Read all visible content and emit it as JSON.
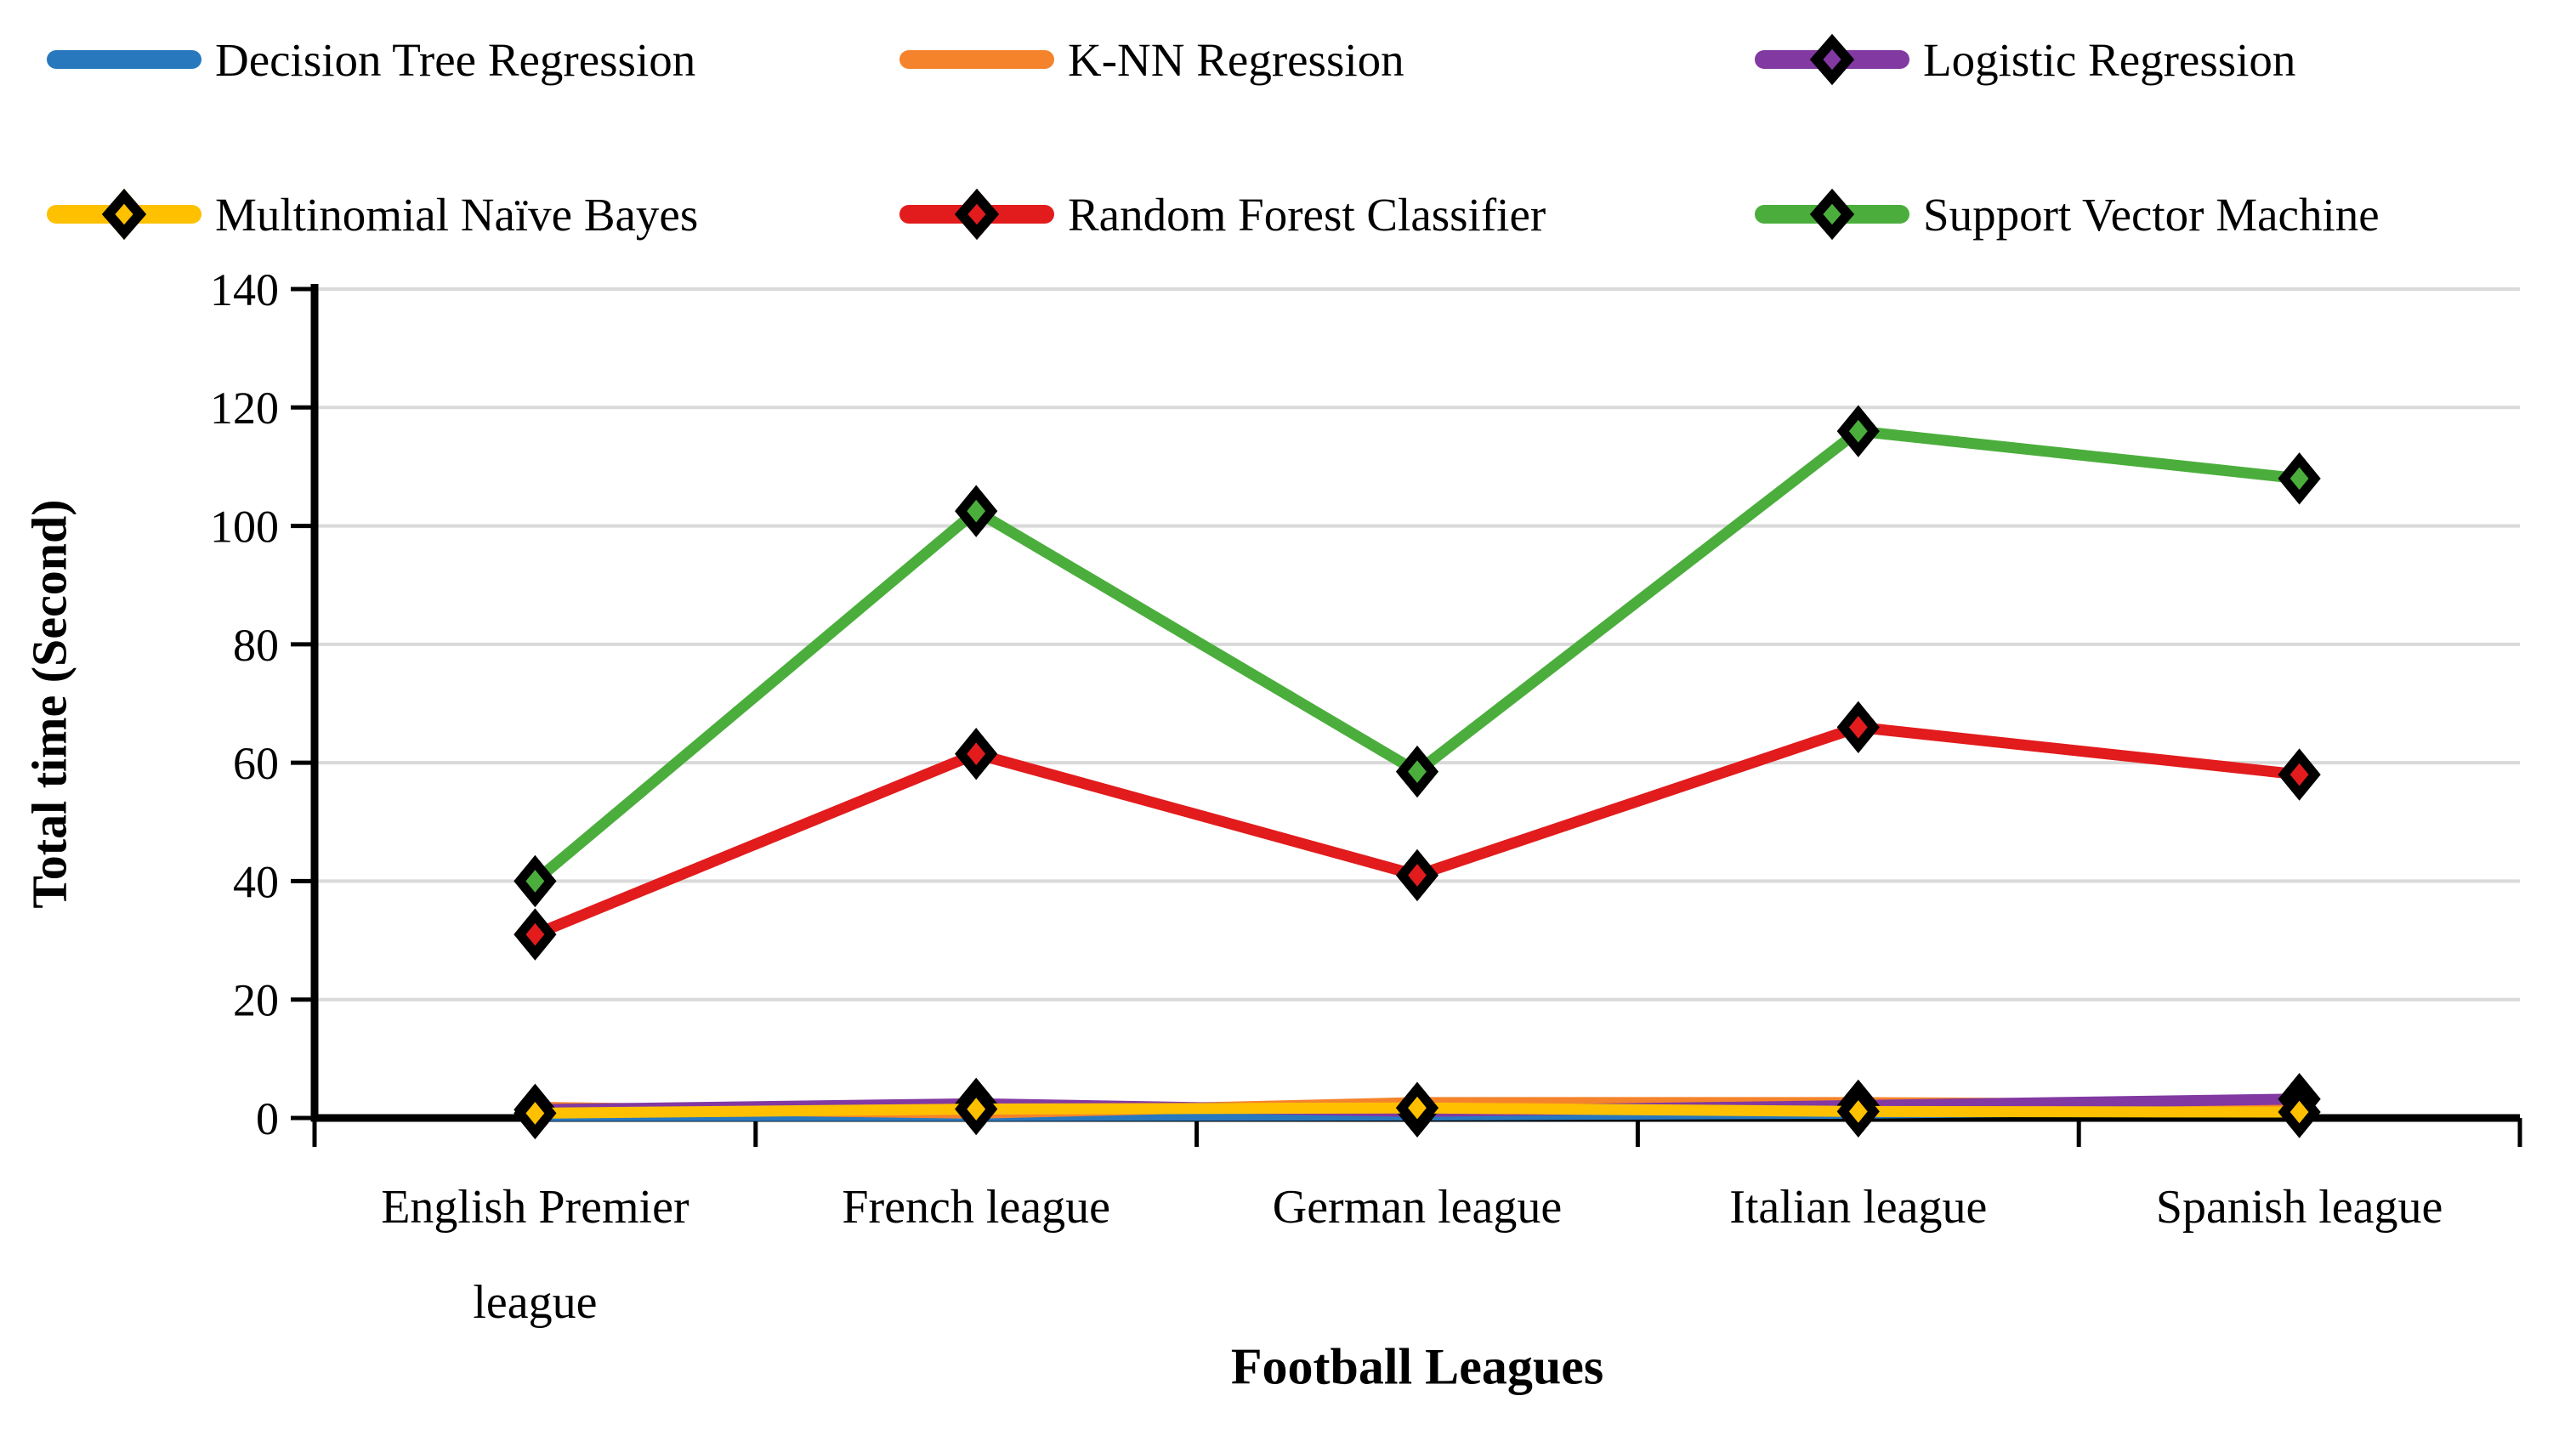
{
  "chart_data": {
    "type": "line",
    "title": "",
    "xlabel": "Football Leagues",
    "ylabel": "Total time (Second)",
    "ylim": [
      0,
      140
    ],
    "yticks": [
      0,
      20,
      40,
      60,
      80,
      100,
      120,
      140
    ],
    "grid": true,
    "grid_color": "#D9D9D9",
    "axis_color": "#000000",
    "legend_position": "top-two-rows",
    "categories": [
      "English Premier league",
      "French league",
      "German league",
      "Italian league",
      "Spanish league"
    ],
    "category_labels_wrapped": [
      [
        "English Premier",
        "league"
      ],
      [
        "French league"
      ],
      [
        "German league"
      ],
      [
        "Italian league"
      ],
      [
        "Spanish league"
      ]
    ],
    "series": [
      {
        "name": "Decision Tree Regression",
        "color": "#2878BE",
        "marker": "none",
        "values": [
          0.4,
          0.4,
          0.5,
          0.8,
          1.6
        ]
      },
      {
        "name": "K-NN Regression",
        "color": "#F5832B",
        "marker": "none",
        "values": [
          1.8,
          0.8,
          2.6,
          2.6,
          2.2
        ]
      },
      {
        "name": "Logistic Regression",
        "color": "#8239A2",
        "marker": "diamond",
        "values": [
          1.4,
          2.4,
          1.1,
          2.1,
          3.2
        ]
      },
      {
        "name": "Multinomial Naïve Bayes",
        "color": "#FFC000",
        "marker": "diamond",
        "values": [
          0.8,
          1.5,
          1.7,
          1.1,
          1.0
        ]
      },
      {
        "name": "Random Forest Classifier",
        "color": "#E21B1C",
        "marker": "diamond",
        "values": [
          31,
          61.5,
          41,
          66,
          58
        ]
      },
      {
        "name": "Support Vector Machine",
        "color": "#4BAE3C",
        "marker": "diamond",
        "values": [
          40,
          102.5,
          58.5,
          116,
          108
        ]
      }
    ]
  }
}
